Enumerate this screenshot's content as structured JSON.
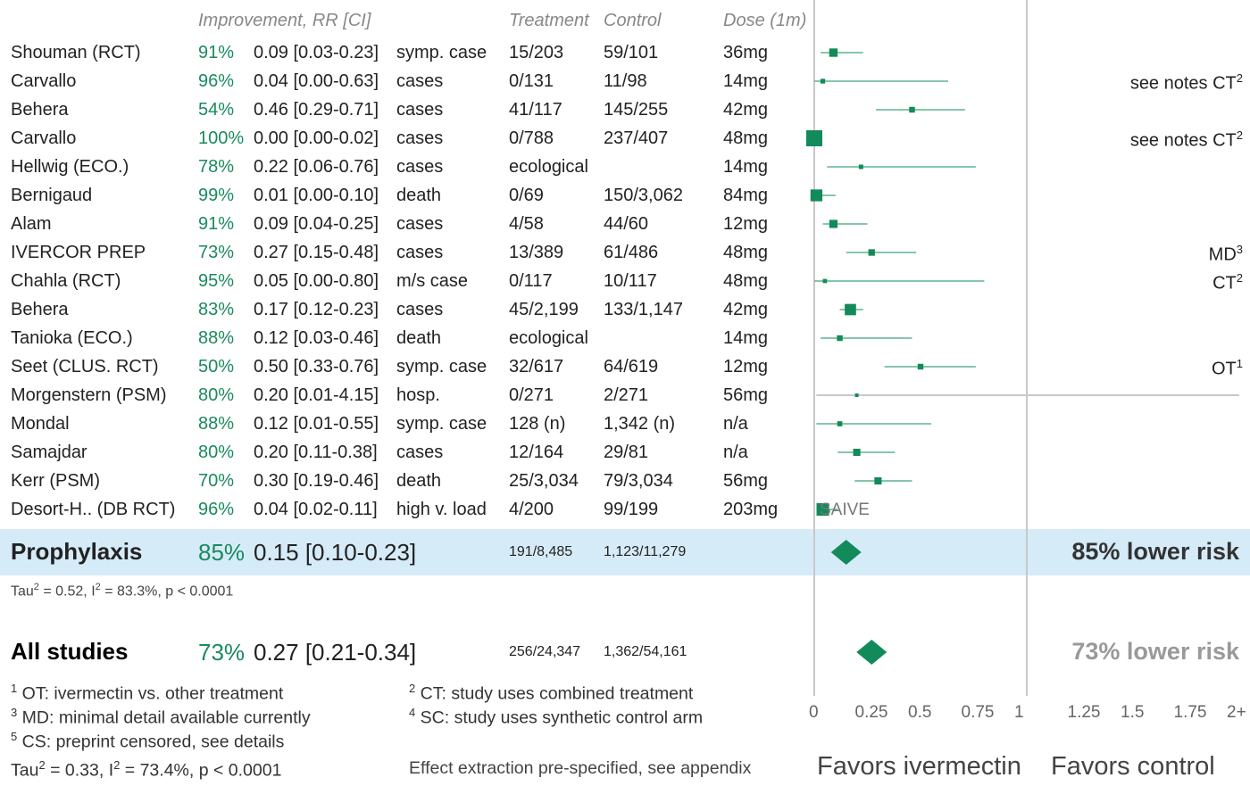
{
  "headers": {
    "improvement": "Improvement, RR [CI]",
    "treatment": "Treatment",
    "control": "Control",
    "dose": "Dose (1m)"
  },
  "rows": [
    {
      "study": "Shouman (RCT)",
      "improvement": "91%",
      "rr_ci": "0.09 [0.03-0.23]",
      "outcome": "symp. case",
      "treatment": "15/203",
      "control": "59/101",
      "dose": "36mg",
      "note": "",
      "note_sup": ""
    },
    {
      "study": "Carvallo",
      "improvement": "96%",
      "rr_ci": "0.04 [0.00-0.63]",
      "outcome": "cases",
      "treatment": "0/131",
      "control": "11/98",
      "dose": "14mg",
      "note": "see notes CT",
      "note_sup": "2"
    },
    {
      "study": "Behera",
      "improvement": "54%",
      "rr_ci": "0.46 [0.29-0.71]",
      "outcome": "cases",
      "treatment": "41/117",
      "control": "145/255",
      "dose": "42mg",
      "note": "",
      "note_sup": ""
    },
    {
      "study": "Carvallo",
      "improvement": "100%",
      "rr_ci": "0.00 [0.00-0.02]",
      "outcome": "cases",
      "treatment": "0/788",
      "control": "237/407",
      "dose": "48mg",
      "note": "see notes CT",
      "note_sup": "2"
    },
    {
      "study": "Hellwig (ECO.)",
      "improvement": "78%",
      "rr_ci": "0.22 [0.06-0.76]",
      "outcome": "cases",
      "treatment": "ecological",
      "control": "",
      "dose": "14mg",
      "note": "",
      "note_sup": ""
    },
    {
      "study": "Bernigaud",
      "improvement": "99%",
      "rr_ci": "0.01 [0.00-0.10]",
      "outcome": "death",
      "treatment": "0/69",
      "control": "150/3,062",
      "dose": "84mg",
      "note": "",
      "note_sup": ""
    },
    {
      "study": "Alam",
      "improvement": "91%",
      "rr_ci": "0.09 [0.04-0.25]",
      "outcome": "cases",
      "treatment": "4/58",
      "control": "44/60",
      "dose": "12mg",
      "note": "",
      "note_sup": ""
    },
    {
      "study": "IVERCOR PREP",
      "improvement": "73%",
      "rr_ci": "0.27 [0.15-0.48]",
      "outcome": "cases",
      "treatment": "13/389",
      "control": "61/486",
      "dose": "48mg",
      "note": "MD",
      "note_sup": "3"
    },
    {
      "study": "Chahla (RCT)",
      "improvement": "95%",
      "rr_ci": "0.05 [0.00-0.80]",
      "outcome": "m/s case",
      "treatment": "0/117",
      "control": "10/117",
      "dose": "48mg",
      "note": "CT",
      "note_sup": "2"
    },
    {
      "study": "Behera",
      "improvement": "83%",
      "rr_ci": "0.17 [0.12-0.23]",
      "outcome": "cases",
      "treatment": "45/2,199",
      "control": "133/1,147",
      "dose": "42mg",
      "note": "",
      "note_sup": ""
    },
    {
      "study": "Tanioka (ECO.)",
      "improvement": "88%",
      "rr_ci": "0.12 [0.03-0.46]",
      "outcome": "death",
      "treatment": "ecological",
      "control": "",
      "dose": "14mg",
      "note": "",
      "note_sup": ""
    },
    {
      "study": "Seet (CLUS. RCT)",
      "improvement": "50%",
      "rr_ci": "0.50 [0.33-0.76]",
      "outcome": "symp. case",
      "treatment": "32/617",
      "control": "64/619",
      "dose": "12mg",
      "note": "OT",
      "note_sup": "1"
    },
    {
      "study": "Morgenstern (PSM)",
      "improvement": "80%",
      "rr_ci": "0.20 [0.01-4.15]",
      "outcome": "hosp.",
      "treatment": "0/271",
      "control": "2/271",
      "dose": "56mg",
      "note": "",
      "note_sup": ""
    },
    {
      "study": "Mondal",
      "improvement": "88%",
      "rr_ci": "0.12 [0.01-0.55]",
      "outcome": "symp. case",
      "treatment": "128 (n)",
      "control": "1,342 (n)",
      "dose": "n/a",
      "note": "",
      "note_sup": ""
    },
    {
      "study": "Samajdar",
      "improvement": "80%",
      "rr_ci": "0.20 [0.11-0.38]",
      "outcome": "cases",
      "treatment": "12/164",
      "control": "29/81",
      "dose": "n/a",
      "note": "",
      "note_sup": ""
    },
    {
      "study": "Kerr (PSM)",
      "improvement": "70%",
      "rr_ci": "0.30 [0.19-0.46]",
      "outcome": "death",
      "treatment": "25/3,034",
      "control": "79/3,034",
      "dose": "56mg",
      "note": "",
      "note_sup": ""
    },
    {
      "study": "Desort-H.. (DB RCT)",
      "improvement": "96%",
      "rr_ci": "0.04 [0.02-0.11]",
      "outcome": "high v. load",
      "treatment": "4/200",
      "control": "99/199",
      "dose": "203mg",
      "note": "",
      "note_sup": ""
    }
  ],
  "saive_label": "SAIVE",
  "prophylaxis": {
    "label": "Prophylaxis",
    "improvement": "85%",
    "rr_ci": "0.15 [0.10-0.23]",
    "treatment": "191/8,485",
    "control": "1,123/11,279",
    "risk": "85% lower risk",
    "stat_tau": "Tau",
    "stat_tau_val": " = 0.52, I",
    "stat_rest": " = 83.3%, p < 0.0001"
  },
  "all_studies": {
    "label": "All studies",
    "improvement": "73%",
    "rr_ci": "0.27 [0.21-0.34]",
    "treatment": "256/24,347",
    "control": "1,362/54,161",
    "risk": "73% lower risk"
  },
  "footnotes": {
    "n1_sup": "1",
    "n1": " OT: ivermectin vs. other treatment",
    "n3_sup": "3",
    "n3": " MD: minimal detail available currently",
    "n5_sup": "5",
    "n5": " CS: preprint censored, see details",
    "n2_sup": "2",
    "n2": " CT: study uses combined treatment",
    "n4_sup": "4",
    "n4": " SC: study uses synthetic control arm",
    "overall_tau": "Tau",
    "overall_mid": " = 0.33, I",
    "overall_rest": " = 73.4%, p < 0.0001",
    "prespecified": "Effect extraction pre-specified, see appendix"
  },
  "axis": {
    "ticks": [
      "0",
      "0.25",
      "0.5",
      "0.75",
      "1",
      "1.25",
      "1.5",
      "1.75",
      "2+"
    ]
  },
  "favors": {
    "left": "Favors ivermectin",
    "right": "Favors control"
  },
  "colors": {
    "marker": "#138a5a",
    "ci_line": "#5fb38e",
    "band": "#d6ebf8",
    "improvement_text": "#1a8a5c",
    "gray_line": "#c8c8c8"
  },
  "chart_data": {
    "type": "forest",
    "xlim": [
      0,
      2
    ],
    "null_value": 1,
    "studies": [
      {
        "rr": 0.09,
        "lo": 0.03,
        "hi": 0.23
      },
      {
        "rr": 0.04,
        "lo": 0.0,
        "hi": 0.63
      },
      {
        "rr": 0.46,
        "lo": 0.29,
        "hi": 0.71
      },
      {
        "rr": 0.0,
        "lo": 0.0,
        "hi": 0.02
      },
      {
        "rr": 0.22,
        "lo": 0.06,
        "hi": 0.76
      },
      {
        "rr": 0.01,
        "lo": 0.0,
        "hi": 0.1
      },
      {
        "rr": 0.09,
        "lo": 0.04,
        "hi": 0.25
      },
      {
        "rr": 0.27,
        "lo": 0.15,
        "hi": 0.48
      },
      {
        "rr": 0.05,
        "lo": 0.0,
        "hi": 0.8
      },
      {
        "rr": 0.17,
        "lo": 0.12,
        "hi": 0.23
      },
      {
        "rr": 0.12,
        "lo": 0.03,
        "hi": 0.46
      },
      {
        "rr": 0.5,
        "lo": 0.33,
        "hi": 0.76
      },
      {
        "rr": 0.2,
        "lo": 0.01,
        "hi": 4.15
      },
      {
        "rr": 0.12,
        "lo": 0.01,
        "hi": 0.55
      },
      {
        "rr": 0.2,
        "lo": 0.11,
        "hi": 0.38
      },
      {
        "rr": 0.3,
        "lo": 0.19,
        "hi": 0.46
      },
      {
        "rr": 0.04,
        "lo": 0.02,
        "hi": 0.11
      }
    ],
    "summaries": [
      {
        "name": "Prophylaxis",
        "rr": 0.15,
        "lo": 0.1,
        "hi": 0.23
      },
      {
        "name": "All studies",
        "rr": 0.27,
        "lo": 0.21,
        "hi": 0.34
      }
    ]
  }
}
